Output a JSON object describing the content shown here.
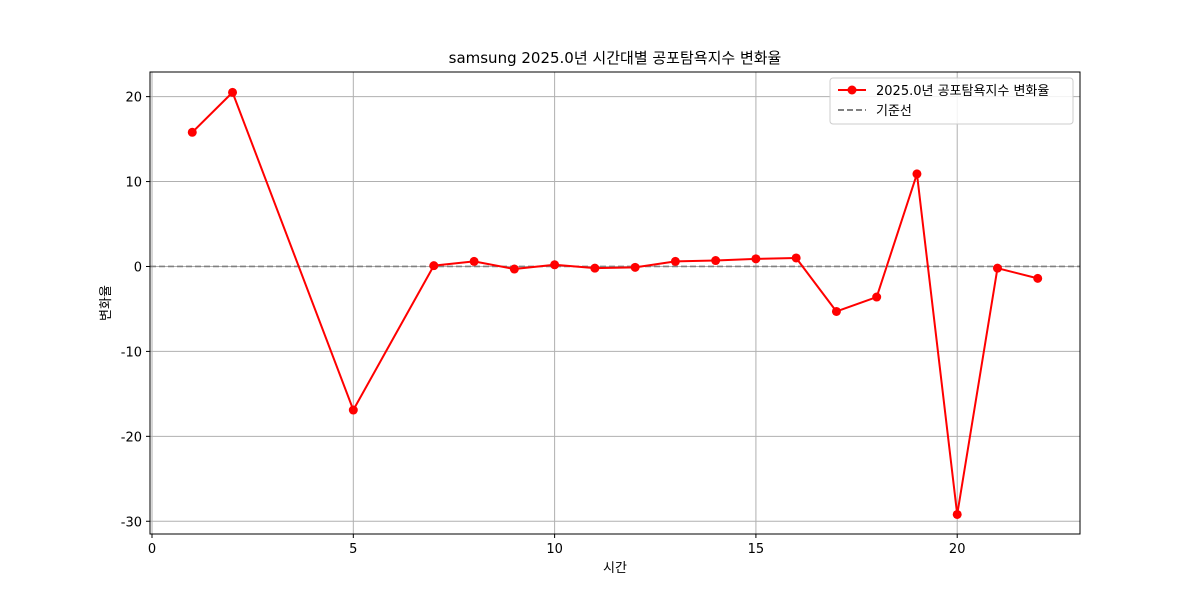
{
  "chart_data": {
    "type": "line",
    "title": "samsung 2025.0년 시간대별 공포탐욕지수 변화율",
    "xlabel": "시간",
    "ylabel": "변화율",
    "xlim": [
      -0.05,
      23.05
    ],
    "ylim": [
      -31.5,
      22.9
    ],
    "x_ticks": [
      0,
      5,
      10,
      15,
      20
    ],
    "y_ticks": [
      -30,
      -20,
      -10,
      0,
      10,
      20
    ],
    "grid": true,
    "legend_position": "upper right",
    "series": [
      {
        "name": "2025.0년 공포탐욕지수 변화율",
        "color": "#ff0000",
        "marker": "circle",
        "x": [
          1,
          2,
          5,
          7,
          8,
          9,
          10,
          11,
          12,
          13,
          14,
          15,
          16,
          17,
          18,
          19,
          20,
          21,
          22
        ],
        "y": [
          15.8,
          20.5,
          -16.9,
          0.1,
          0.6,
          -0.3,
          0.2,
          -0.2,
          -0.1,
          0.6,
          0.7,
          0.9,
          1.0,
          -5.3,
          -3.6,
          10.9,
          -29.2,
          -0.2,
          -1.4
        ]
      }
    ],
    "reference_line": {
      "name": "기준선",
      "y": 0,
      "color": "#808080",
      "style": "dashed"
    }
  }
}
